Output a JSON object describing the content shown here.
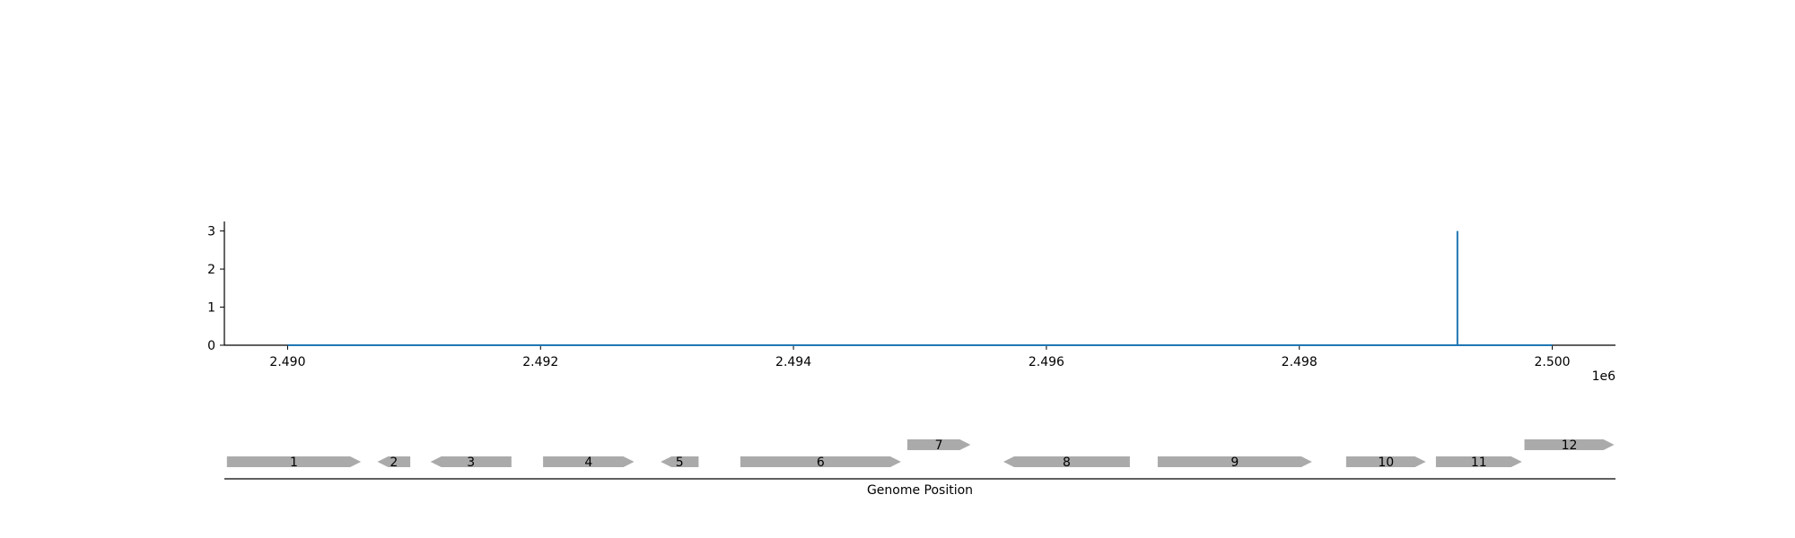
{
  "chart_data": [
    {
      "type": "line",
      "title": "",
      "xlabel": "",
      "ylabel": "",
      "x_offset_label": "1e6",
      "xlim": [
        2.4895,
        2.5005
      ],
      "ylim": [
        0,
        3.25
      ],
      "x_ticks": [
        2.49,
        2.492,
        2.494,
        2.496,
        2.498,
        2.5
      ],
      "x_tick_labels": [
        "2.490",
        "2.492",
        "2.494",
        "2.496",
        "2.498",
        "2.500"
      ],
      "y_ticks": [
        0,
        1,
        2,
        3
      ],
      "y_tick_labels": [
        "0",
        "1",
        "2",
        "3"
      ],
      "grid": false,
      "color": "#1f77b4",
      "series": [
        {
          "x": [
            2.49,
            2.49925,
            2.49925,
            2.49925,
            2.5
          ],
          "y": [
            0,
            0,
            3,
            0,
            0
          ]
        }
      ]
    },
    {
      "type": "gene-map",
      "xlabel": "Genome Position",
      "xlim": [
        2.4895,
        2.5005
      ],
      "gene_color": "#aaaaaa",
      "genes": [
        {
          "label": "1",
          "start": 2.48952,
          "end": 2.49058,
          "strand": "+",
          "row": 0
        },
        {
          "label": "2",
          "start": 2.49071,
          "end": 2.49097,
          "strand": "-",
          "row": 0
        },
        {
          "label": "3",
          "start": 2.49113,
          "end": 2.49177,
          "strand": "-",
          "row": 0
        },
        {
          "label": "4",
          "start": 2.49202,
          "end": 2.49274,
          "strand": "+",
          "row": 0
        },
        {
          "label": "5",
          "start": 2.49295,
          "end": 2.49325,
          "strand": "-",
          "row": 0
        },
        {
          "label": "6",
          "start": 2.49358,
          "end": 2.49485,
          "strand": "+",
          "row": 0
        },
        {
          "label": "7",
          "start": 2.4949,
          "end": 2.4954,
          "strand": "+",
          "row": 1
        },
        {
          "label": "8",
          "start": 2.49566,
          "end": 2.49666,
          "strand": "-",
          "row": 0
        },
        {
          "label": "9",
          "start": 2.49688,
          "end": 2.4981,
          "strand": "+",
          "row": 0
        },
        {
          "label": "10",
          "start": 2.49837,
          "end": 2.499,
          "strand": "+",
          "row": 0
        },
        {
          "label": "11",
          "start": 2.49908,
          "end": 2.49976,
          "strand": "+",
          "row": 0
        },
        {
          "label": "12",
          "start": 2.49978,
          "end": 2.50049,
          "strand": "+",
          "row": 1
        }
      ]
    }
  ]
}
